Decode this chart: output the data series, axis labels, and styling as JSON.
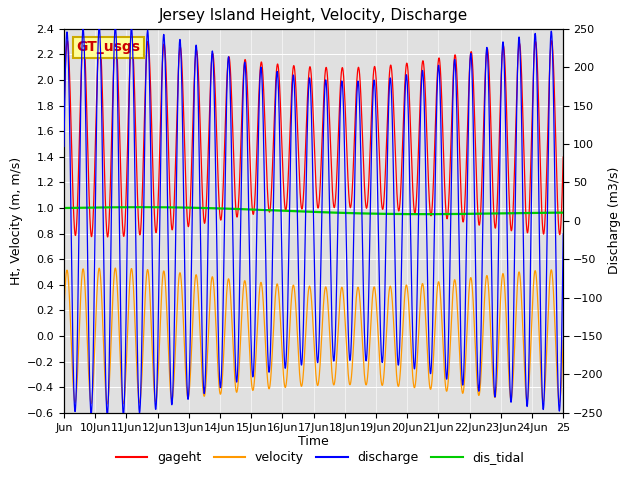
{
  "title": "Jersey Island Height, Velocity, Discharge",
  "xlabel": "Time",
  "ylabel_left": "Ht, Velocity (m, m/s)",
  "ylabel_right": "Discharge (m3/s)",
  "ylim_left": [
    -0.6,
    2.4
  ],
  "ylim_right": [
    -250,
    250
  ],
  "xlim_days": [
    9.0,
    25.0
  ],
  "xtick_days": [
    9,
    10,
    11,
    12,
    13,
    14,
    15,
    16,
    17,
    18,
    19,
    20,
    21,
    22,
    23,
    24,
    25
  ],
  "xtick_labels": [
    "Jun",
    "10Jun",
    "11Jun",
    "12Jun",
    "13Jun",
    "14Jun",
    "15Jun",
    "16Jun",
    "17Jun",
    "18Jun",
    "19Jun",
    "20Jun",
    "21Jun",
    "22Jun",
    "23Jun",
    "24Jun",
    "25"
  ],
  "colors": {
    "gageht": "#ff0000",
    "velocity": "#ff9900",
    "discharge": "#0000ff",
    "dis_tidal": "#00cc00"
  },
  "legend_label": "GT_usgs",
  "legend_box_color": "#ffff99",
  "legend_box_edge": "#ccaa00",
  "background_color": "#e0e0e0",
  "grid_color": "#ffffff",
  "title_fontsize": 11,
  "axis_fontsize": 9,
  "tick_fontsize": 8,
  "legend_fontsize": 9,
  "tidal_period_hours": 12.42,
  "num_days": 16,
  "dt_hours": 0.1,
  "gageht_mean": 1.55,
  "gageht_amp": 0.65,
  "velocity_amp": 0.45,
  "discharge_amp": 215,
  "dis_tidal_mean": 1.0,
  "dis_tidal_drift": -0.003
}
